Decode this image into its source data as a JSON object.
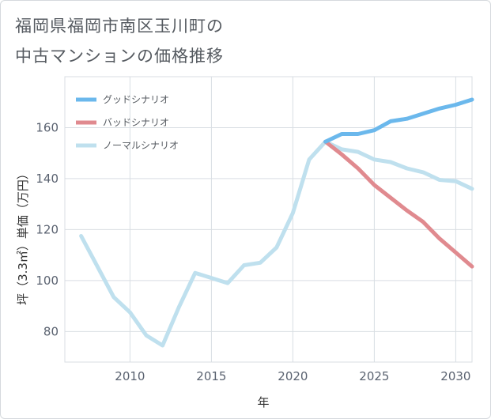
{
  "title": {
    "line1": "福岡県福岡市南区玉川町の",
    "line2": "中古マンションの価格推移"
  },
  "chart_data": {
    "type": "line",
    "title": "福岡県福岡市南区玉川町の中古マンションの価格推移",
    "xlabel": "年",
    "ylabel": "坪（3.3㎡）単価（万円）",
    "xlim": [
      2006,
      2031
    ],
    "ylim": [
      68,
      180
    ],
    "xticks": [
      2010,
      2015,
      2020,
      2025,
      2030
    ],
    "yticks": [
      80,
      100,
      120,
      140,
      160
    ],
    "legend_position": "top-left",
    "series": [
      {
        "name": "グッドシナリオ",
        "color": "#6bb8ec",
        "x": [
          2022,
          2023,
          2024,
          2025,
          2026,
          2027,
          2028,
          2029,
          2030,
          2031
        ],
        "values": [
          154.5,
          157.5,
          157.5,
          159,
          162.5,
          163.5,
          165.5,
          167.5,
          169,
          171
        ]
      },
      {
        "name": "バッドシナリオ",
        "color": "#e08a8f",
        "x": [
          2022,
          2023,
          2024,
          2025,
          2026,
          2027,
          2028,
          2029,
          2030,
          2031
        ],
        "values": [
          154.5,
          149.5,
          144,
          137.5,
          132.5,
          127.5,
          123,
          116.5,
          111,
          105.5
        ]
      },
      {
        "name": "ノーマルシナリオ",
        "color": "#bfe0ee",
        "x": [
          2007,
          2008,
          2009,
          2010,
          2011,
          2012,
          2013,
          2014,
          2015,
          2016,
          2017,
          2018,
          2019,
          2020,
          2021,
          2022,
          2023,
          2024,
          2025,
          2026,
          2027,
          2028,
          2029,
          2030,
          2031
        ],
        "values": [
          117.5,
          105.5,
          93.5,
          87.5,
          78.5,
          74.5,
          89.5,
          103,
          101,
          99,
          106,
          107,
          113,
          126.5,
          147.5,
          154.5,
          151.5,
          150.5,
          147.5,
          146.5,
          144,
          142.5,
          139.5,
          139,
          136
        ]
      }
    ]
  }
}
